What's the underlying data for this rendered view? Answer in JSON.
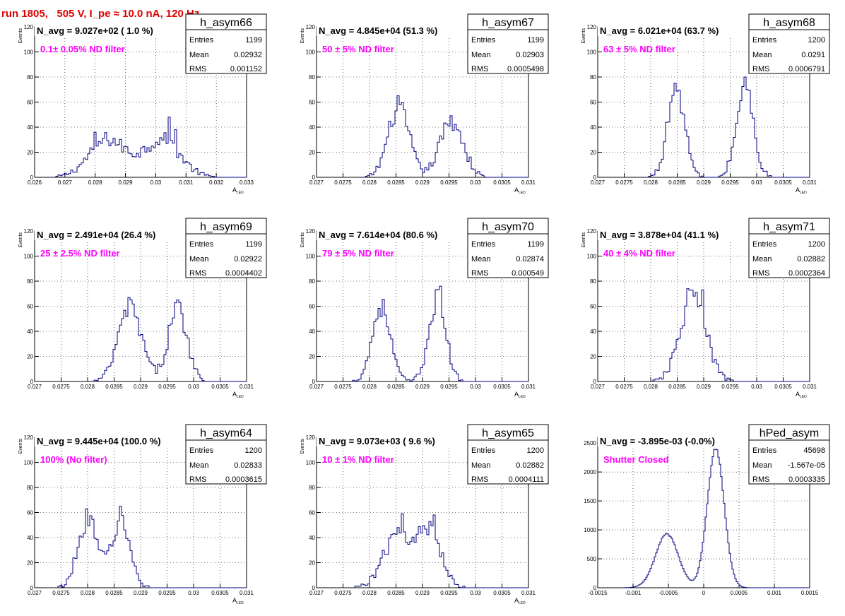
{
  "run_title": "run 1805,   505 V, I_pe ≈ 10.0 nA, 120 Hz",
  "colors": {
    "histogram": "#000080",
    "annotation": "#ff00ff",
    "title": "#e00000"
  },
  "stat_labels": {
    "entries": "Entries",
    "mean": "Mean",
    "rms": "RMS"
  },
  "chart_data": [
    {
      "type": "histogram",
      "name": "h_asym66",
      "title": "N_avg = 9.027e+02 ( 1.0 %)",
      "annotation": "0.1± 0.05% ND filter",
      "stats": {
        "entries": "1199",
        "mean": "0.02932",
        "rms": "0.001152"
      },
      "xlabel": "A",
      "xlabel_sub": "LED",
      "ylabel": "Events",
      "xlim": [
        0.026,
        0.033
      ],
      "ylim": [
        0,
        120
      ],
      "grid": true,
      "xticks": [
        0.026,
        0.027,
        0.028,
        0.029,
        0.03,
        0.031,
        0.032,
        0.033
      ],
      "xticklabels": [
        "0.026",
        "0.027",
        "0.028",
        "0.029",
        "0.03",
        "0.031",
        "0.032",
        "0.033"
      ],
      "yticks": [
        0,
        20,
        40,
        60,
        80,
        100,
        120
      ],
      "peaks": [
        {
          "mu": 0.0284,
          "sigma": 0.0006,
          "amp": 30
        },
        {
          "mu": 0.0302,
          "sigma": 0.0006,
          "amp": 30
        }
      ],
      "bin_width": 7e-05,
      "spikes": [
        [
          0.03043,
          48
        ],
        [
          0.02798,
          36
        ],
        [
          0.03063,
          38
        ]
      ]
    },
    {
      "type": "histogram",
      "name": "h_asym67",
      "title": "N_avg = 4.845e+04 (51.3 %)",
      "annotation": "50 ± 5% ND filter",
      "stats": {
        "entries": "1199",
        "mean": "0.02903",
        "rms": "0.0005498"
      },
      "xlabel": "A",
      "xlabel_sub": "LED",
      "ylabel": "Events",
      "xlim": [
        0.027,
        0.031
      ],
      "ylim": [
        0,
        120
      ],
      "grid": true,
      "xticks": [
        0.027,
        0.0275,
        0.028,
        0.0285,
        0.029,
        0.0295,
        0.03,
        0.0305,
        0.031
      ],
      "xticklabels": [
        "0.027",
        "0.0275",
        "0.028",
        "0.0285",
        "0.029",
        "0.0295",
        "0.03",
        "0.0305",
        "0.031"
      ],
      "yticks": [
        0,
        20,
        40,
        60,
        80,
        100,
        120
      ],
      "peaks": [
        {
          "mu": 0.02855,
          "sigma": 0.0002,
          "amp": 55
        },
        {
          "mu": 0.02955,
          "sigma": 0.00022,
          "amp": 45
        }
      ],
      "bin_width": 4e-05,
      "spikes": [
        [
          0.02852,
          65
        ]
      ]
    },
    {
      "type": "histogram",
      "name": "h_asym68",
      "title": "N_avg = 6.021e+04 (63.7 %)",
      "annotation": "63 ± 5% ND filter",
      "stats": {
        "entries": "1200",
        "mean": "0.0291",
        "rms": "0.0006791"
      },
      "xlabel": "A",
      "xlabel_sub": "LED",
      "ylabel": "Events",
      "xlim": [
        0.027,
        0.031
      ],
      "ylim": [
        0,
        120
      ],
      "grid": true,
      "xticks": [
        0.027,
        0.0275,
        0.028,
        0.0285,
        0.029,
        0.0295,
        0.03,
        0.0305,
        0.031
      ],
      "xticklabels": [
        "0.027",
        "0.0275",
        "0.028",
        "0.0285",
        "0.029",
        "0.0295",
        "0.03",
        "0.0305",
        "0.031"
      ],
      "yticks": [
        0,
        20,
        40,
        60,
        80,
        100,
        120
      ],
      "peaks": [
        {
          "mu": 0.02848,
          "sigma": 0.00016,
          "amp": 72
        },
        {
          "mu": 0.02978,
          "sigma": 0.00016,
          "amp": 72
        }
      ],
      "bin_width": 4e-05,
      "spikes": [
        [
          0.02845,
          75
        ],
        [
          0.02978,
          80
        ]
      ]
    },
    {
      "type": "histogram",
      "name": "h_asym69",
      "title": "N_avg = 2.491e+04 (26.4 %)",
      "annotation": "25 ± 2.5% ND filter",
      "stats": {
        "entries": "1199",
        "mean": "0.02922",
        "rms": "0.0004402"
      },
      "xlabel": "A",
      "xlabel_sub": "LED",
      "ylabel": "Events",
      "xlim": [
        0.027,
        0.031
      ],
      "ylim": [
        0,
        120
      ],
      "grid": true,
      "xticks": [
        0.027,
        0.0275,
        0.028,
        0.0285,
        0.029,
        0.0295,
        0.03,
        0.0305,
        0.031
      ],
      "xticklabels": [
        "0.027",
        "0.0275",
        "0.028",
        "0.0285",
        "0.029",
        "0.0295",
        "0.03",
        "0.0305",
        "0.031"
      ],
      "yticks": [
        0,
        20,
        40,
        60,
        80,
        100,
        120
      ],
      "peaks": [
        {
          "mu": 0.0288,
          "sigma": 0.00022,
          "amp": 58
        },
        {
          "mu": 0.0297,
          "sigma": 0.00018,
          "amp": 58
        }
      ],
      "bin_width": 4e-05,
      "spikes": [
        [
          0.02878,
          67
        ],
        [
          0.02968,
          65
        ]
      ]
    },
    {
      "type": "histogram",
      "name": "h_asym70",
      "title": "N_avg = 7.614e+04 (80.6 %)",
      "annotation": "79 ± 5% ND filter",
      "stats": {
        "entries": "1199",
        "mean": "0.02874",
        "rms": "0.000549"
      },
      "xlabel": "A",
      "xlabel_sub": "LED",
      "ylabel": "Events",
      "xlim": [
        0.027,
        0.031
      ],
      "ylim": [
        0,
        120
      ],
      "grid": true,
      "xticks": [
        0.027,
        0.0275,
        0.028,
        0.0285,
        0.029,
        0.0295,
        0.03,
        0.0305,
        0.031
      ],
      "xticklabels": [
        "0.027",
        "0.0275",
        "0.028",
        "0.0285",
        "0.029",
        "0.0295",
        "0.03",
        "0.0305",
        "0.031"
      ],
      "yticks": [
        0,
        20,
        40,
        60,
        80,
        100,
        120
      ],
      "peaks": [
        {
          "mu": 0.02822,
          "sigma": 0.00017,
          "amp": 60
        },
        {
          "mu": 0.02928,
          "sigma": 0.00016,
          "amp": 66
        }
      ],
      "bin_width": 4e-05,
      "spikes": [
        [
          0.02932,
          76
        ]
      ]
    },
    {
      "type": "histogram",
      "name": "h_asym71",
      "title": "N_avg = 3.878e+04 (41.1 %)",
      "annotation": "40 ± 4% ND filter",
      "stats": {
        "entries": "1200",
        "mean": "0.02882",
        "rms": "0.0002364"
      },
      "xlabel": "A",
      "xlabel_sub": "LED",
      "ylabel": "Events",
      "xlim": [
        0.027,
        0.031
      ],
      "ylim": [
        0,
        120
      ],
      "grid": true,
      "xticks": [
        0.027,
        0.0275,
        0.028,
        0.0285,
        0.029,
        0.0295,
        0.03,
        0.0305,
        0.031
      ],
      "xticklabels": [
        "0.027",
        "0.0275",
        "0.028",
        "0.0285",
        "0.029",
        "0.0295",
        "0.03",
        "0.0305",
        "0.031"
      ],
      "yticks": [
        0,
        20,
        40,
        60,
        80,
        100,
        120
      ],
      "peaks": [
        {
          "mu": 0.0288,
          "sigma": 0.00024,
          "amp": 68
        }
      ],
      "bin_width": 4e-05,
      "spikes": [
        [
          0.02868,
          74
        ],
        [
          0.02898,
          73
        ]
      ]
    },
    {
      "type": "histogram",
      "name": "h_asym64",
      "title": "N_avg = 9.445e+04 (100.0 %)",
      "annotation": "100% (No filter)",
      "stats": {
        "entries": "1200",
        "mean": "0.02833",
        "rms": "0.0003615"
      },
      "xlabel": "A",
      "xlabel_sub": "LED",
      "ylabel": "Events",
      "xlim": [
        0.027,
        0.031
      ],
      "ylim": [
        0,
        120
      ],
      "grid": true,
      "xticks": [
        0.027,
        0.0275,
        0.028,
        0.0285,
        0.029,
        0.0295,
        0.03,
        0.0305,
        0.031
      ],
      "xticklabels": [
        "0.027",
        "0.0275",
        "0.028",
        "0.0285",
        "0.029",
        "0.0295",
        "0.03",
        "0.0305",
        "0.031"
      ],
      "yticks": [
        0,
        20,
        40,
        60,
        80,
        100,
        120
      ],
      "peaks": [
        {
          "mu": 0.028,
          "sigma": 0.00018,
          "amp": 54
        },
        {
          "mu": 0.02862,
          "sigma": 0.00018,
          "amp": 52
        }
      ],
      "bin_width": 4e-05,
      "spikes": [
        [
          0.02798,
          63
        ],
        [
          0.0286,
          65
        ]
      ]
    },
    {
      "type": "histogram",
      "name": "h_asym65",
      "title": "N_avg = 9.073e+03 ( 9.6 %)",
      "annotation": "10 ± 1% ND filter",
      "stats": {
        "entries": "1200",
        "mean": "0.02882",
        "rms": "0.0004111"
      },
      "xlabel": "A",
      "xlabel_sub": "LED",
      "ylabel": "Events",
      "xlim": [
        0.027,
        0.031
      ],
      "ylim": [
        0,
        120
      ],
      "grid": true,
      "xticks": [
        0.027,
        0.0275,
        0.028,
        0.0285,
        0.029,
        0.0295,
        0.03,
        0.0305,
        0.031
      ],
      "xticklabels": [
        "0.027",
        "0.0275",
        "0.028",
        "0.0285",
        "0.029",
        "0.0295",
        "0.03",
        "0.0305",
        "0.031"
      ],
      "yticks": [
        0,
        20,
        40,
        60,
        80,
        100,
        120
      ],
      "peaks": [
        {
          "mu": 0.02855,
          "sigma": 0.00028,
          "amp": 42
        },
        {
          "mu": 0.02915,
          "sigma": 0.00022,
          "amp": 42
        }
      ],
      "bin_width": 4e-05,
      "spikes": [
        [
          0.0286,
          59
        ],
        [
          0.02922,
          58
        ]
      ]
    },
    {
      "type": "histogram",
      "name": "hPed_asym",
      "title": "N_avg = -3.895e-03 (-0.0%)",
      "annotation": "Shutter Closed",
      "stats": {
        "entries": "45698",
        "mean": "-1.567e-05",
        "rms": "0.0003335"
      },
      "xlabel": "",
      "xlabel_sub": "",
      "ylabel": "",
      "xlim": [
        -0.0015,
        0.0015
      ],
      "ylim": [
        0,
        2600
      ],
      "grid": true,
      "xticks": [
        -0.0015,
        -0.001,
        -0.0005,
        0,
        0.0005,
        0.001,
        0.0015
      ],
      "xticklabels": [
        "-0.0015",
        "-0.001",
        "-0.0005",
        "0",
        "0.0005",
        "0.001",
        "0.0015"
      ],
      "yticks": [
        0,
        500,
        1000,
        1500,
        2000,
        2500
      ],
      "peaks": [
        {
          "mu": -0.00052,
          "sigma": 0.00016,
          "amp": 930
        },
        {
          "mu": 0.00017,
          "sigma": 0.00012,
          "amp": 2400
        }
      ],
      "bin_width": 2e-05,
      "spikes": [],
      "smooth": true
    }
  ]
}
